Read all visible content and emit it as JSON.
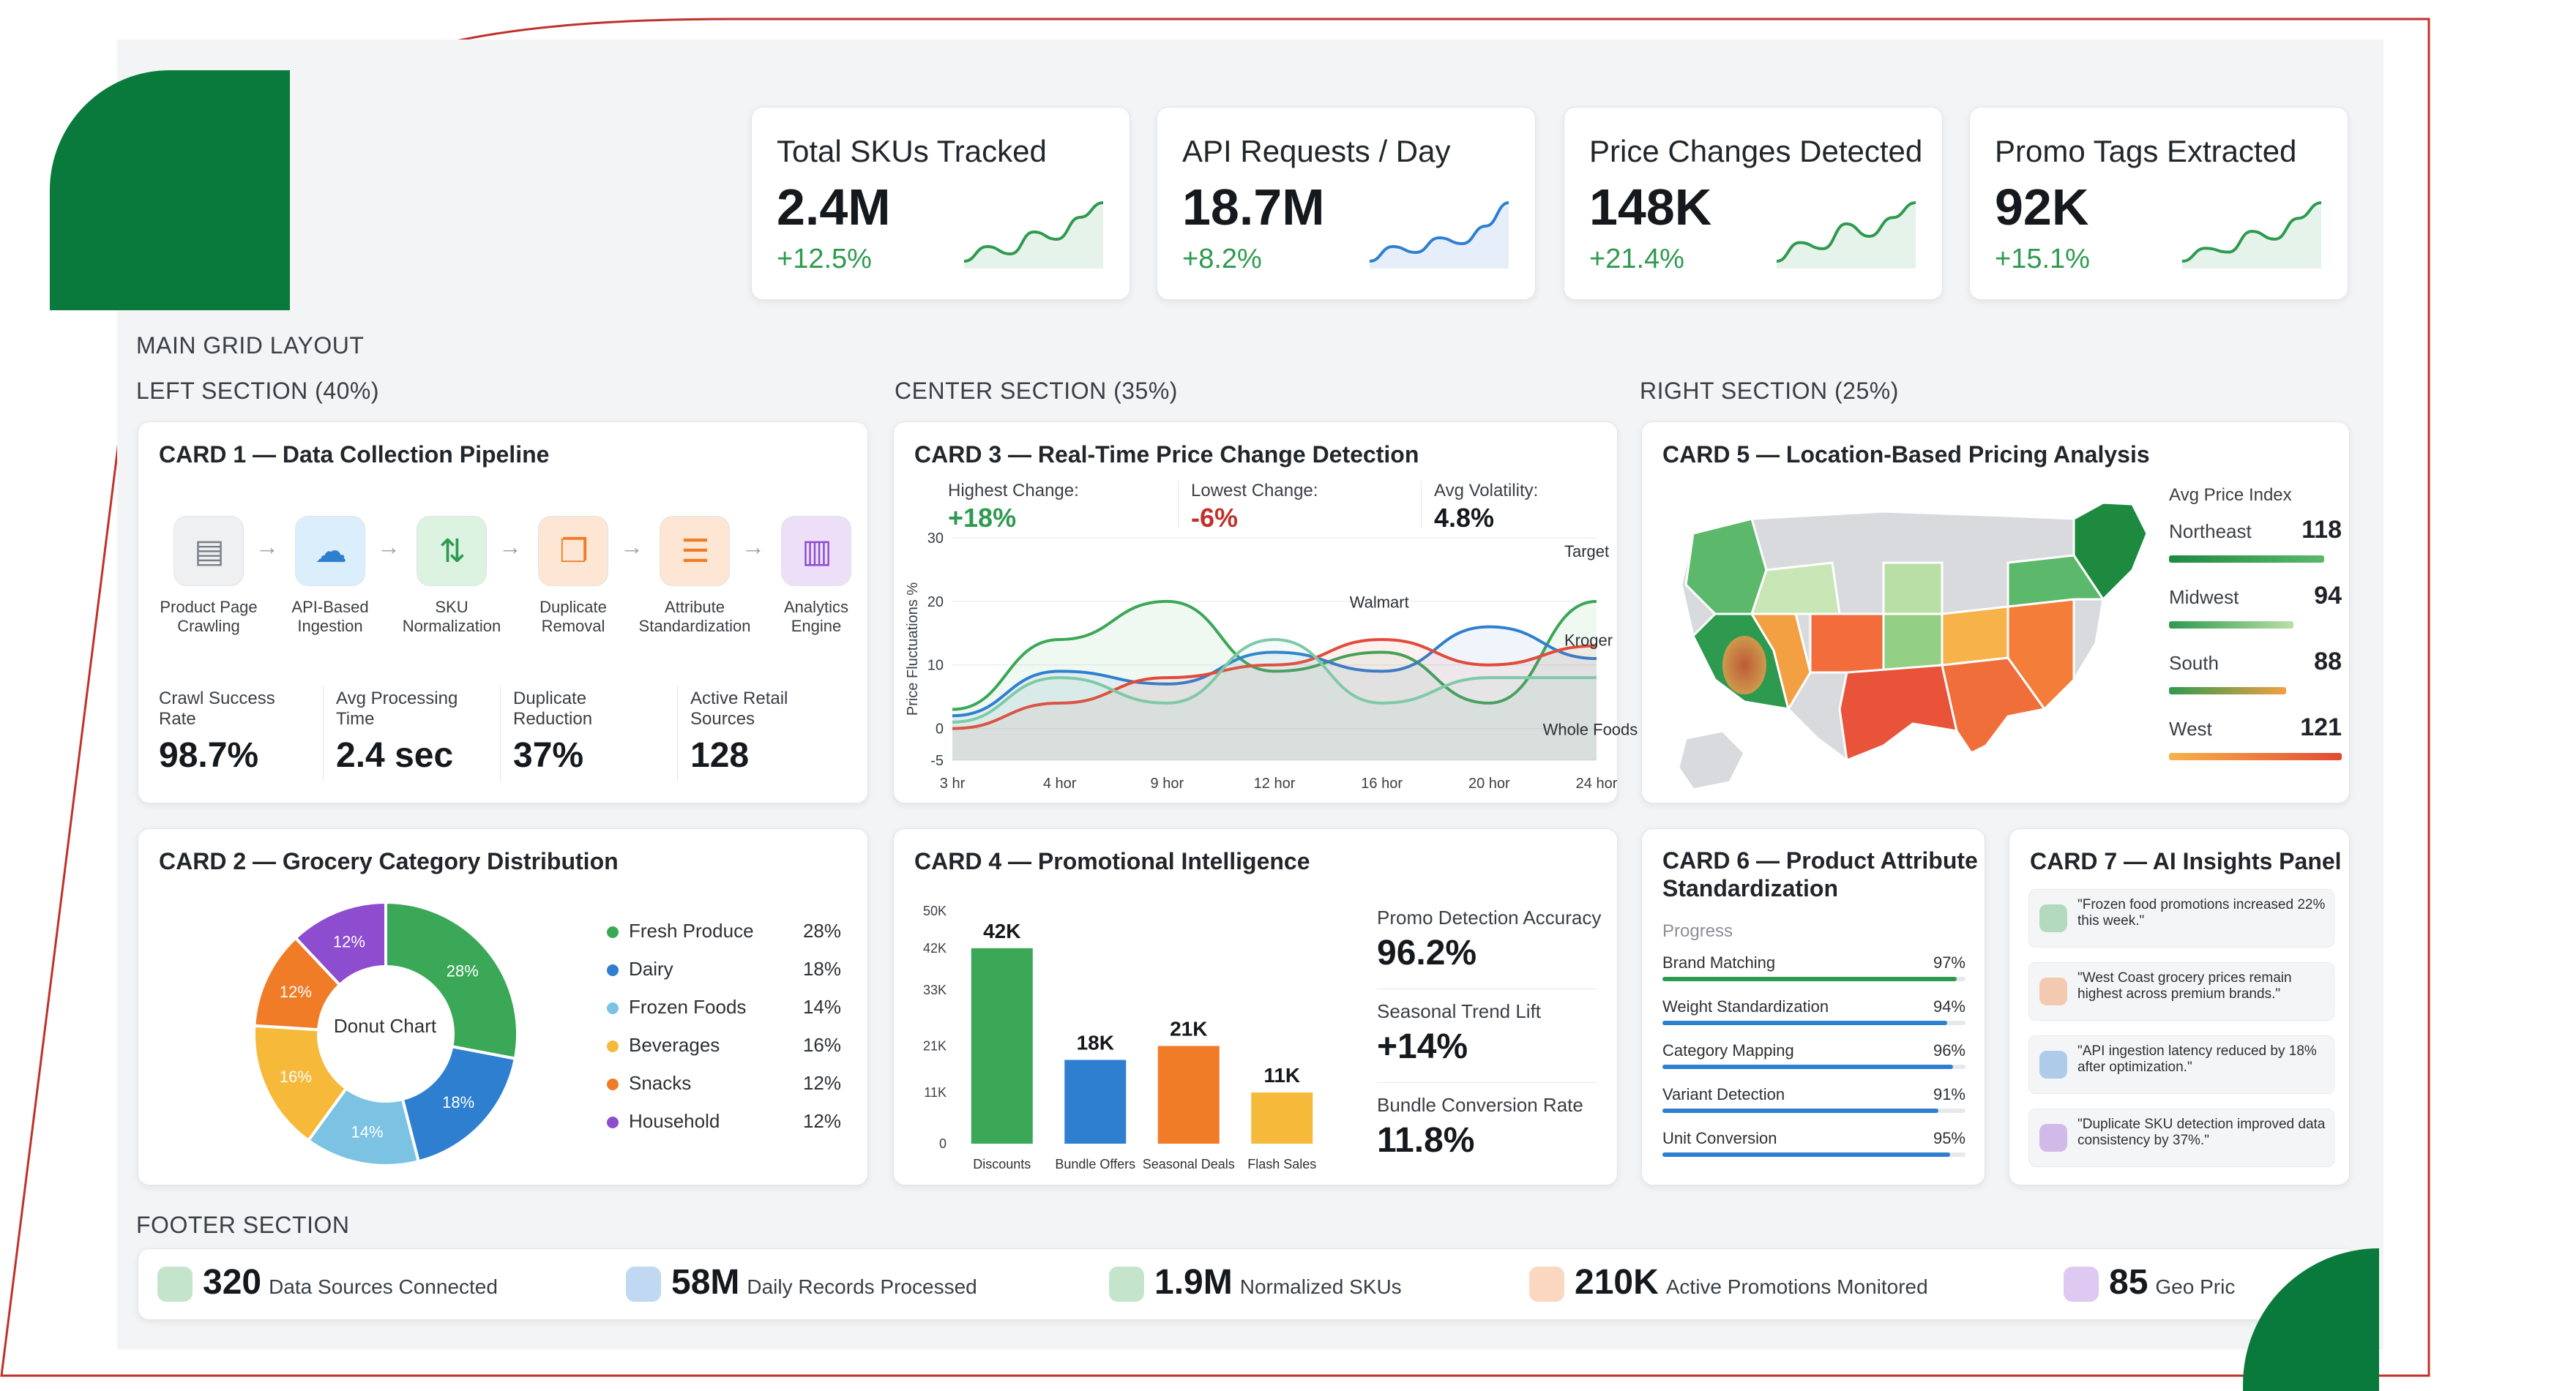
{
  "colors": {
    "brand": "#0a7a3c",
    "accent_red": "#c0312b",
    "green": "#2e9a4f",
    "blue": "#2f7fd0",
    "light_blue": "#7cc3e3",
    "orange": "#f07c28",
    "yellow": "#f6b93a",
    "purple": "#8e4ccf"
  },
  "kpis": [
    {
      "title": "Total SKUs Tracked",
      "value": "2.4M",
      "delta": "+12.5%",
      "spark_values": [
        2,
        3,
        2.5,
        4,
        3.5,
        5,
        6
      ]
    },
    {
      "title": "API Requests / Day",
      "value": "18.7M",
      "delta": "+8.2%",
      "spark_values": [
        2,
        3,
        2.6,
        3.6,
        3.2,
        4.4,
        6
      ]
    },
    {
      "title": "Price Changes Detected",
      "value": "148K",
      "delta": "+21.4%",
      "spark_values": [
        1.5,
        3,
        2.5,
        4.5,
        3.5,
        5,
        6.2
      ]
    },
    {
      "title": "Promo Tags Extracted",
      "value": "92K",
      "delta": "+15.1%",
      "spark_values": [
        1.5,
        2.5,
        2.2,
        3.8,
        3.2,
        4.8,
        6
      ]
    }
  ],
  "labels": {
    "main_grid": "MAIN GRID LAYOUT",
    "left_section": "LEFT SECTION (40%)",
    "center_section": "CENTER SECTION (35%)",
    "right_section": "RIGHT SECTION (25%)",
    "footer_section": "FOOTER SECTION"
  },
  "card1": {
    "title": "CARD 1 — Data Collection Pipeline",
    "steps": [
      {
        "label": "Product Page\nCrawling",
        "icon": "product-page-icon"
      },
      {
        "label": "API-Based\nIngestion",
        "icon": "cloud-upload-icon"
      },
      {
        "label": "SKU\nNormalization",
        "icon": "sort-arrows-icon"
      },
      {
        "label": "Duplicate\nRemoval",
        "icon": "copy-icon"
      },
      {
        "label": "Attribute\nStandardization",
        "icon": "sliders-icon"
      },
      {
        "label": "Analytics\nEngine",
        "icon": "analytics-chart-icon"
      }
    ],
    "stats": [
      {
        "label": "Crawl Success\nRate",
        "value": "98.7%"
      },
      {
        "label": "Avg Processing\nTime",
        "value": "2.4 sec"
      },
      {
        "label": "Duplicate\nReduction",
        "value": "37%"
      },
      {
        "label": "Active Retail\nSources",
        "value": "128"
      }
    ]
  },
  "card2": {
    "title": "CARD 2 — Grocery Category Distribution",
    "center_label": "Donut Chart",
    "legend": [
      {
        "name": "Fresh Produce",
        "pct": "28%",
        "value": 28,
        "color": "#3aa856"
      },
      {
        "name": "Dairy",
        "pct": "18%",
        "value": 18,
        "color": "#2f7fd0"
      },
      {
        "name": "Frozen Foods",
        "pct": "14%",
        "value": 14,
        "color": "#7cc3e3"
      },
      {
        "name": "Beverages",
        "pct": "16%",
        "value": 16,
        "color": "#f6b93a"
      },
      {
        "name": "Snacks",
        "pct": "12%",
        "value": 12,
        "color": "#f07c28"
      },
      {
        "name": "Household",
        "pct": "12%",
        "value": 12,
        "color": "#8e4ccf"
      }
    ]
  },
  "card3": {
    "title": "CARD 3 — Real-Time Price Change Detection",
    "stats": [
      {
        "label": "Highest Change:",
        "value": "+18%",
        "color": "#2e9a4f"
      },
      {
        "label": "Lowest Change:",
        "value": "-6%",
        "color": "#c0312b"
      },
      {
        "label": "Avg Volatility:",
        "value": "4.8%",
        "color": "#15191d"
      }
    ]
  },
  "card4": {
    "title": "CARD 4 — Promotional Intelligence",
    "metrics": [
      {
        "label": "Promo Detection Accuracy",
        "value": "96.2%"
      },
      {
        "label": "Seasonal Trend Lift",
        "value": "+14%"
      },
      {
        "label": "Bundle Conversion Rate",
        "value": "11.8%"
      }
    ]
  },
  "card5": {
    "title": "CARD 5 — Location-Based Pricing Analysis",
    "legend_title": "Avg Price Index",
    "regions": [
      {
        "name": "Northeast",
        "value": "118",
        "bar_fraction": 0.9
      },
      {
        "name": "Midwest",
        "value": "94",
        "bar_fraction": 0.72
      },
      {
        "name": "South",
        "value": "88",
        "bar_fraction": 0.68
      },
      {
        "name": "West",
        "value": "121",
        "bar_fraction": 1.0
      }
    ]
  },
  "card6": {
    "title": "CARD 6 — Product Attribute\nStandardization",
    "progress_label": "Progress",
    "items": [
      {
        "name": "Brand Matching",
        "pct": "97%",
        "value": 97
      },
      {
        "name": "Weight Standardization",
        "pct": "94%",
        "value": 94
      },
      {
        "name": "Category Mapping",
        "pct": "96%",
        "value": 96
      },
      {
        "name": "Variant Detection",
        "pct": "91%",
        "value": 91
      },
      {
        "name": "Unit Conversion",
        "pct": "95%",
        "value": 95
      }
    ]
  },
  "card7": {
    "title": "CARD 7 — AI Insights Panel",
    "insights": [
      {
        "text": "\"Frozen food promotions increased 22% this week.\"",
        "color": "#3aa856"
      },
      {
        "text": "\"West Coast grocery prices remain highest across premium brands.\"",
        "color": "#f07c28"
      },
      {
        "text": "\"API ingestion latency reduced by 18% after optimization.\"",
        "color": "#2f7fd0"
      },
      {
        "text": "\"Duplicate SKU detection improved data consistency by 37%.\"",
        "color": "#8e4ccf"
      }
    ]
  },
  "footer": [
    {
      "value": "320",
      "label": "Data Sources Connected",
      "icon": "database-icon",
      "color": "#3aa856"
    },
    {
      "value": "58M",
      "label": "Daily Records Processed",
      "icon": "layers-icon",
      "color": "#2f7fd0"
    },
    {
      "value": "1.9M",
      "label": "Normalized SKUs",
      "icon": "grid-icon",
      "color": "#3aa856"
    },
    {
      "value": "210K",
      "label": "Active Promotions Monitored",
      "icon": "tag-icon",
      "color": "#f07c28"
    },
    {
      "value": "85",
      "label": "Geo Pric",
      "icon": "location-pin-icon",
      "color": "#8e4ccf"
    }
  ],
  "chart_data": [
    {
      "type": "line",
      "ylabel": "Price Fluctuations %",
      "x": [
        "3 hr",
        "4 hor",
        "9 hor",
        "12 hor",
        "16 hor",
        "20 hor",
        "24 hor"
      ],
      "ylim": [
        -5,
        30
      ],
      "yticks": [
        -5,
        0,
        10,
        20,
        30
      ],
      "grid": true,
      "series": [
        {
          "name": "Walmart",
          "color": "#3aa856",
          "values": [
            3,
            14,
            20,
            9,
            12,
            4,
            20
          ]
        },
        {
          "name": "Target",
          "color": "#2f7fd0",
          "values": [
            2,
            9,
            7,
            12,
            9,
            16,
            11
          ]
        },
        {
          "name": "Kroger",
          "color": "#e24b3b",
          "values": [
            0,
            4,
            8,
            10,
            14,
            10,
            13
          ]
        },
        {
          "name": "Whole Foods",
          "color": "#7fc9a8",
          "values": [
            1,
            8,
            4,
            14,
            4,
            8,
            8
          ]
        }
      ]
    },
    {
      "type": "bar",
      "categories": [
        "Discounts",
        "Bundle Offers",
        "Seasonal Deals",
        "Flash Sales"
      ],
      "values": [
        42,
        18,
        21,
        11
      ],
      "data_labels": [
        "42K",
        "18K",
        "21K",
        "11K"
      ],
      "colors": [
        "#3aa856",
        "#2f7fd0",
        "#f07c28",
        "#f6b93a"
      ],
      "ylim": [
        0,
        50
      ],
      "yticks": [
        "0",
        "11K",
        "21K",
        "33K",
        "42K",
        "50K"
      ]
    }
  ]
}
